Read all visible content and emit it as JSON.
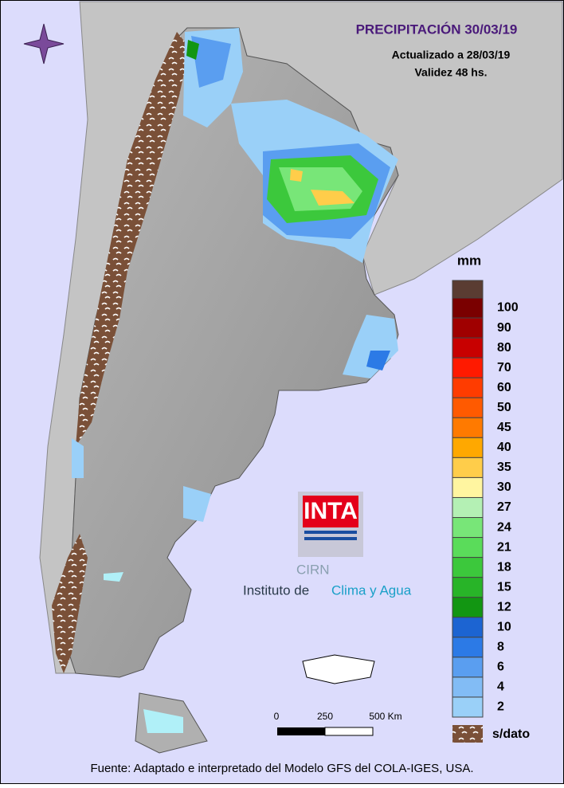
{
  "header": {
    "title": "PRECIPITACIÓN 30/03/19",
    "updated": "Actualizado a 28/03/19",
    "validity": "Validez 48 hs."
  },
  "legend": {
    "unit": "mm",
    "no_data": "s/dato",
    "items": [
      {
        "label": "100",
        "color": "#7a0000"
      },
      {
        "label": "90",
        "color": "#a00000"
      },
      {
        "label": "80",
        "color": "#c80000"
      },
      {
        "label": "70",
        "color": "#ff1a00"
      },
      {
        "label": "60",
        "color": "#ff3c00"
      },
      {
        "label": "50",
        "color": "#ff5a00"
      },
      {
        "label": "45",
        "color": "#ff7a00"
      },
      {
        "label": "40",
        "color": "#ffa800"
      },
      {
        "label": "35",
        "color": "#ffcd4a"
      },
      {
        "label": "30",
        "color": "#fff5a0"
      },
      {
        "label": "27",
        "color": "#b4f0b4"
      },
      {
        "label": "24",
        "color": "#78e678"
      },
      {
        "label": "21",
        "color": "#5adc5a"
      },
      {
        "label": "18",
        "color": "#3cc83c"
      },
      {
        "label": "15",
        "color": "#28b428"
      },
      {
        "label": "12",
        "color": "#129612"
      },
      {
        "label": "10",
        "color": "#1c64d2"
      },
      {
        "label": "8",
        "color": "#2c7ae6"
      },
      {
        "label": "6",
        "color": "#5a9ef0"
      },
      {
        "label": "4",
        "color": "#82bcf5"
      },
      {
        "label": "2",
        "color": "#9ad0f8"
      }
    ]
  },
  "scale_bar": {
    "labels": [
      "0",
      "250",
      "500 Km"
    ]
  },
  "logo": {
    "brand": "INTA",
    "cirn": "CIRN",
    "institute": "Instituto de",
    "institute_highlight": "Clima y Agua"
  },
  "footer": "Fuente: Adaptado e interpretado del Modelo GFS del COLA-IGES, USA."
}
